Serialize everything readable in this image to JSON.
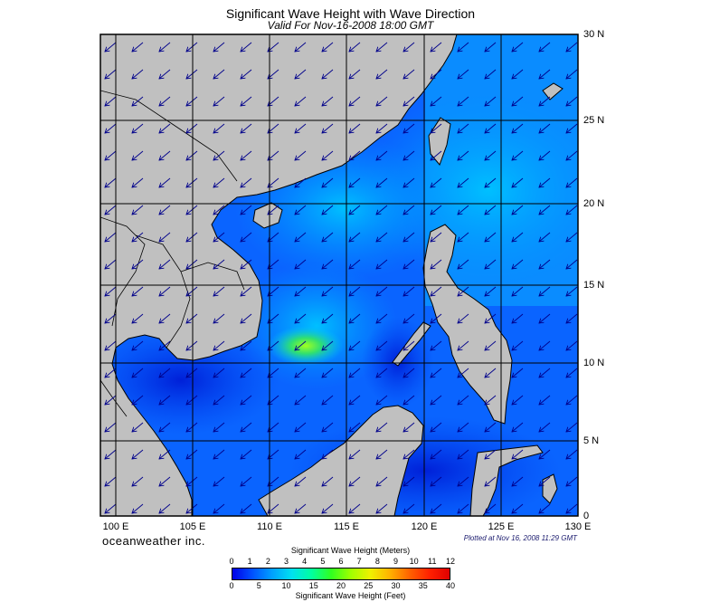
{
  "header": {
    "title": "Significant Wave Height with Wave Direction",
    "subtitle": "Valid For Nov-16-2008 18:00 GMT"
  },
  "map": {
    "lon_range": [
      99,
      130
    ],
    "lat_range": [
      0,
      30
    ],
    "lon_labels": [
      "100 E",
      "105 E",
      "110 E",
      "115 E",
      "120 E",
      "125 E",
      "130 E"
    ],
    "lat_labels": [
      "30 N",
      "25 N",
      "20 N",
      "15 N",
      "10 N",
      "5 N",
      "0"
    ],
    "land_color": "#c0c0c0",
    "coast_color": "#000000",
    "grid_color": "#000000",
    "arrow_color": "#00008b",
    "prevailing_wave_direction": "toward southwest"
  },
  "footer": {
    "brand": "oceanweather inc.",
    "plotted": "Plotted at Nov 16, 2008 11:29 GMT"
  },
  "colorbar": {
    "meters_title": "Significant Wave Height (Meters)",
    "feet_title": "Significant Wave Height (Feet)",
    "meters_ticks": [
      "0",
      "1",
      "2",
      "3",
      "4",
      "5",
      "6",
      "7",
      "8",
      "9",
      "10",
      "11",
      "12"
    ],
    "feet_ticks": [
      "0",
      "5",
      "10",
      "15",
      "20",
      "25",
      "30",
      "35",
      "40"
    ],
    "colors": [
      "#0000e6",
      "#0050ff",
      "#00a0ff",
      "#00e0f0",
      "#00ffa0",
      "#30ff20",
      "#a0ff00",
      "#f0f000",
      "#ffb000",
      "#ff6000",
      "#ff2000",
      "#e00000"
    ]
  }
}
